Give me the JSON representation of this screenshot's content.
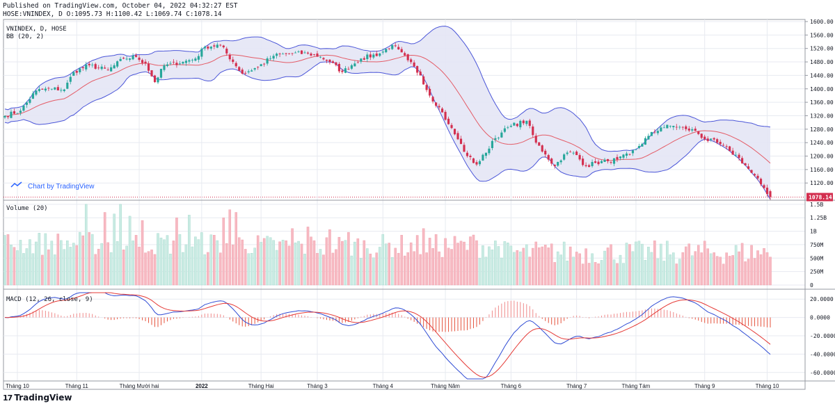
{
  "header": {
    "published": "Published on TradingView.com, October 04, 2022 04:32:27 EST",
    "ohlc": "HOSE:VNINDEX, D O:1095.73 H:1100.42 L:1069.74 C:1078.14"
  },
  "footer": {
    "brand": "TradingView",
    "brand_mark": "17"
  },
  "watermark": "Chart by TradingView",
  "colors": {
    "up": "#26a69a",
    "up_fill": "#c9ebe3",
    "down": "#d32f4f",
    "down_fill": "#f7b9c2",
    "bb_band": "#4a55d8",
    "bb_basis": "#e45b66",
    "bb_fill": "#e4e6f5",
    "macd": "#2e4bd4",
    "signal": "#e53935",
    "grid": "#e7eaf0",
    "watermark": "#2962ff"
  },
  "chart_data": [
    {
      "type": "candlestick",
      "title": "VNINDEX, D, HOSE",
      "indicator_label": "BB (20, 2)",
      "ylim": [
        1075,
        1600
      ],
      "yticks": [
        1600,
        1560,
        1520,
        1480,
        1440,
        1400,
        1360,
        1320,
        1280,
        1240,
        1200,
        1160,
        1120
      ],
      "last_price": "1078.14",
      "x_labels": [
        "Tháng 10",
        "Tháng 11",
        "Tháng Mười hai",
        "2022",
        "Tháng Hai",
        "Tháng 3",
        "Tháng 4",
        "Tháng Năm",
        "Tháng 6",
        "Tháng 7",
        "Tháng Tám",
        "Tháng 9",
        "Tháng 10"
      ],
      "x_label_idx": [
        4,
        23,
        43,
        63,
        82,
        100,
        121,
        141,
        162,
        183,
        202,
        224,
        244
      ],
      "bars": 246,
      "close_anchors": [
        [
          0,
          1320
        ],
        [
          5,
          1335
        ],
        [
          10,
          1395
        ],
        [
          15,
          1400
        ],
        [
          19,
          1398
        ],
        [
          22,
          1450
        ],
        [
          27,
          1470
        ],
        [
          33,
          1455
        ],
        [
          38,
          1490
        ],
        [
          42,
          1495
        ],
        [
          45,
          1475
        ],
        [
          48,
          1420
        ],
        [
          51,
          1470
        ],
        [
          57,
          1480
        ],
        [
          61,
          1490
        ],
        [
          64,
          1525
        ],
        [
          69,
          1530
        ],
        [
          73,
          1480
        ],
        [
          76,
          1445
        ],
        [
          81,
          1465
        ],
        [
          86,
          1498
        ],
        [
          91,
          1505
        ],
        [
          97,
          1505
        ],
        [
          101,
          1495
        ],
        [
          104,
          1480
        ],
        [
          108,
          1450
        ],
        [
          111,
          1470
        ],
        [
          114,
          1490
        ],
        [
          120,
          1505
        ],
        [
          124,
          1530
        ],
        [
          129,
          1485
        ],
        [
          133,
          1440
        ],
        [
          136,
          1380
        ],
        [
          139,
          1345
        ],
        [
          142,
          1295
        ],
        [
          145,
          1250
        ],
        [
          148,
          1200
        ],
        [
          151,
          1175
        ],
        [
          154,
          1210
        ],
        [
          156,
          1245
        ],
        [
          159,
          1270
        ],
        [
          162,
          1290
        ],
        [
          167,
          1305
        ],
        [
          170,
          1240
        ],
        [
          173,
          1205
        ],
        [
          176,
          1170
        ],
        [
          179,
          1205
        ],
        [
          182,
          1210
        ],
        [
          186,
          1170
        ],
        [
          189,
          1180
        ],
        [
          193,
          1185
        ],
        [
          196,
          1190
        ],
        [
          200,
          1205
        ],
        [
          203,
          1230
        ],
        [
          206,
          1260
        ],
        [
          210,
          1285
        ],
        [
          214,
          1290
        ],
        [
          218,
          1280
        ],
        [
          221,
          1275
        ],
        [
          224,
          1250
        ],
        [
          228,
          1240
        ],
        [
          232,
          1215
        ],
        [
          235,
          1195
        ],
        [
          239,
          1150
        ],
        [
          243,
          1105
        ],
        [
          245,
          1078.14
        ]
      ],
      "bb": {
        "period": 20,
        "mult": 2
      }
    },
    {
      "type": "bar",
      "title": "Volume (20)",
      "ylim": [
        0,
        1.55
      ],
      "unit": "billion",
      "yticks": [
        "1.5B",
        "1.25B",
        "1B",
        "750M",
        "500M",
        "250M",
        "0"
      ],
      "ytick_values": [
        1.5,
        1.25,
        1.0,
        0.75,
        0.5,
        0.25,
        0
      ],
      "spikes": [
        [
          26,
          1.5
        ],
        [
          37,
          1.5
        ],
        [
          32,
          1.35
        ],
        [
          35,
          1.32
        ],
        [
          40,
          1.28
        ],
        [
          44,
          1.2
        ],
        [
          55,
          1.25
        ],
        [
          59,
          1.3
        ],
        [
          70,
          1.25
        ],
        [
          72,
          1.4
        ],
        [
          74,
          1.35
        ],
        [
          92,
          1.05
        ],
        [
          97,
          1.08
        ],
        [
          104,
          1.03
        ],
        [
          110,
          0.98
        ],
        [
          134,
          1.05
        ],
        [
          150,
          0.93
        ]
      ]
    },
    {
      "type": "line",
      "title": "MACD (12, 26, close, 9)",
      "params": [
        12,
        26,
        9
      ],
      "ylim": [
        -67,
        27
      ],
      "yticks": [
        "20.0000",
        "0.0000",
        "-20.0000",
        "-40.0000",
        "-60.0000"
      ],
      "ytick_values": [
        20,
        0,
        -20,
        -40,
        -60
      ]
    }
  ]
}
